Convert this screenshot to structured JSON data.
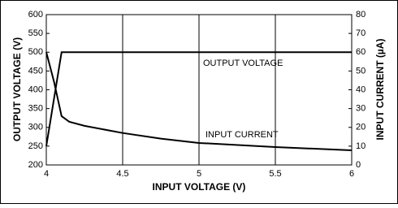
{
  "chart_data": {
    "type": "line",
    "xlabel": "INPUT VOLTAGE (V)",
    "ylabel": "OUTPUT VOLTAGE (V)",
    "y2label": "INPUT CURRENT (µA)",
    "xlim": [
      4,
      6
    ],
    "xticks": [
      4,
      4.5,
      5,
      5.5,
      6
    ],
    "ylim": [
      200,
      600
    ],
    "yticks": [
      200,
      250,
      300,
      350,
      400,
      450,
      500,
      550,
      600
    ],
    "y2lim": [
      0,
      80
    ],
    "y2ticks": [
      0,
      10,
      20,
      30,
      40,
      50,
      60,
      70,
      80
    ],
    "grid": true,
    "series": [
      {
        "name": "OUTPUT VOLTAGE",
        "color": "#000000",
        "x": [
          4,
          4.1,
          6
        ],
        "values": [
          250,
          500,
          500
        ]
      },
      {
        "name": "INPUT CURRENT",
        "color": "#000000",
        "axis": "y2",
        "x": [
          4,
          4.05,
          4.1,
          4.15,
          4.25,
          4.5,
          4.75,
          5,
          5.5,
          6
        ],
        "values": [
          60,
          44.5,
          26,
          23,
          20.8,
          17,
          14,
          11.7,
          9.5,
          7.8
        ]
      }
    ]
  }
}
